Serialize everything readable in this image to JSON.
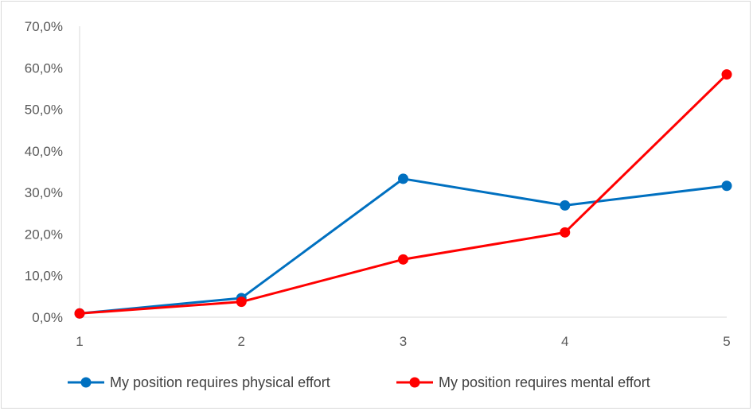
{
  "chart_data": {
    "type": "line",
    "title": "",
    "xlabel": "",
    "ylabel": "",
    "x": [
      1,
      2,
      3,
      4,
      5
    ],
    "x_tick_labels": [
      "1",
      "2",
      "3",
      "4",
      "5"
    ],
    "ylim": [
      0,
      70
    ],
    "y_ticks": [
      0,
      10,
      20,
      30,
      40,
      50,
      60,
      70
    ],
    "y_tick_labels": [
      "0,0%",
      "10,0%",
      "20,0%",
      "30,0%",
      "40,0%",
      "50,0%",
      "60,0%",
      "70,0%"
    ],
    "grid": false,
    "legend_position": "bottom",
    "series": [
      {
        "name": "My position requires physical effort",
        "color": "#0070c0",
        "values": [
          0.9,
          4.6,
          33.3,
          26.9,
          31.6
        ]
      },
      {
        "name": "My position requires mental effort",
        "color": "#ff0000",
        "values": [
          0.9,
          3.7,
          13.9,
          20.4,
          58.4
        ]
      }
    ]
  }
}
